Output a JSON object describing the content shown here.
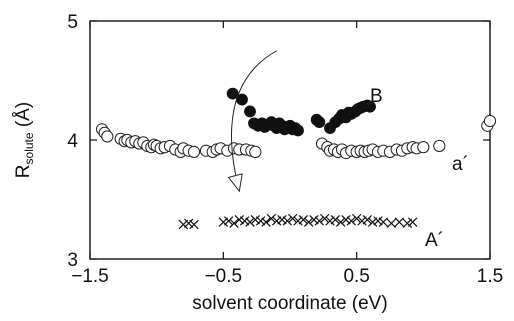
{
  "chart_data": {
    "type": "scatter",
    "title": "",
    "xlabel": "solvent coordinate (eV)",
    "ylabel_main": "R",
    "ylabel_sub": "solute",
    "ylabel_unit": " (Å)",
    "xlim": [
      -1.5,
      1.5
    ],
    "ylim": [
      3,
      5
    ],
    "xticks": [
      -1.5,
      -0.5,
      0.5,
      1.5
    ],
    "xtick_labels": [
      "−1.5",
      "−0.5",
      "0.5",
      "1.5"
    ],
    "yticks": [
      3,
      4,
      5
    ],
    "ytick_labels": [
      "3",
      "4",
      "5"
    ],
    "grid": false,
    "series": [
      {
        "marker": "open-circle",
        "annotation": "a´",
        "points": [
          [
            -1.41,
            4.09
          ],
          [
            -1.39,
            4.06
          ],
          [
            -1.37,
            4.03
          ],
          [
            -1.27,
            4.01
          ],
          [
            -1.24,
            3.99
          ],
          [
            -1.22,
            4.0
          ],
          [
            -1.19,
            3.98
          ],
          [
            -1.16,
            3.99
          ],
          [
            -1.13,
            3.97
          ],
          [
            -1.1,
            3.98
          ],
          [
            -1.07,
            3.95
          ],
          [
            -1.04,
            3.94
          ],
          [
            -1.02,
            3.96
          ],
          [
            -1.0,
            3.95
          ],
          [
            -0.97,
            3.93
          ],
          [
            -0.94,
            3.94
          ],
          [
            -0.9,
            3.95
          ],
          [
            -0.86,
            3.92
          ],
          [
            -0.82,
            3.9
          ],
          [
            -0.8,
            3.93
          ],
          [
            -0.76,
            3.91
          ],
          [
            -0.72,
            3.9
          ],
          [
            -0.63,
            3.91
          ],
          [
            -0.58,
            3.9
          ],
          [
            -0.55,
            3.92
          ],
          [
            -0.52,
            3.93
          ],
          [
            -0.47,
            3.91
          ],
          [
            -0.42,
            3.93
          ],
          [
            -0.38,
            3.92
          ],
          [
            -0.33,
            3.92
          ],
          [
            -0.29,
            3.91
          ],
          [
            -0.26,
            3.9
          ],
          [
            0.24,
            3.97
          ],
          [
            0.28,
            3.94
          ],
          [
            0.3,
            3.91
          ],
          [
            0.33,
            3.92
          ],
          [
            0.36,
            3.9
          ],
          [
            0.39,
            3.92
          ],
          [
            0.42,
            3.89
          ],
          [
            0.46,
            3.91
          ],
          [
            0.5,
            3.9
          ],
          [
            0.53,
            3.91
          ],
          [
            0.56,
            3.9
          ],
          [
            0.59,
            3.91
          ],
          [
            0.62,
            3.92
          ],
          [
            0.66,
            3.9
          ],
          [
            0.7,
            3.91
          ],
          [
            0.75,
            3.9
          ],
          [
            0.8,
            3.92
          ],
          [
            0.84,
            3.91
          ],
          [
            0.88,
            3.93
          ],
          [
            0.92,
            3.94
          ],
          [
            0.95,
            3.93
          ],
          [
            1.0,
            3.94
          ],
          [
            1.12,
            3.95
          ],
          [
            1.48,
            4.12
          ],
          [
            1.5,
            4.16
          ]
        ]
      },
      {
        "marker": "filled-circle",
        "annotation": "B",
        "points": [
          [
            -0.43,
            4.39
          ],
          [
            -0.36,
            4.34
          ],
          [
            -0.3,
            4.24
          ],
          [
            -0.27,
            4.14
          ],
          [
            -0.24,
            4.12
          ],
          [
            -0.21,
            4.14
          ],
          [
            -0.19,
            4.11
          ],
          [
            -0.16,
            4.13
          ],
          [
            -0.14,
            4.15
          ],
          [
            -0.12,
            4.12
          ],
          [
            -0.1,
            4.1
          ],
          [
            -0.08,
            4.14
          ],
          [
            -0.06,
            4.12
          ],
          [
            -0.04,
            4.09
          ],
          [
            -0.02,
            4.1
          ],
          [
            0.0,
            4.12
          ],
          [
            0.02,
            4.09
          ],
          [
            0.04,
            4.1
          ],
          [
            0.06,
            4.08
          ],
          [
            0.2,
            4.17
          ],
          [
            0.22,
            4.15
          ],
          [
            0.3,
            4.1
          ],
          [
            0.34,
            4.15
          ],
          [
            0.37,
            4.18
          ],
          [
            0.39,
            4.21
          ],
          [
            0.42,
            4.19
          ],
          [
            0.44,
            4.23
          ],
          [
            0.46,
            4.22
          ],
          [
            0.49,
            4.24
          ],
          [
            0.51,
            4.26
          ],
          [
            0.53,
            4.27
          ],
          [
            0.55,
            4.28
          ],
          [
            0.58,
            4.29
          ],
          [
            0.6,
            4.28
          ]
        ]
      },
      {
        "marker": "cross",
        "annotation": "A´",
        "points": [
          [
            -0.8,
            3.29
          ],
          [
            -0.76,
            3.3
          ],
          [
            -0.72,
            3.29
          ],
          [
            -0.5,
            3.31
          ],
          [
            -0.46,
            3.32
          ],
          [
            -0.42,
            3.3
          ],
          [
            -0.38,
            3.33
          ],
          [
            -0.34,
            3.32
          ],
          [
            -0.3,
            3.31
          ],
          [
            -0.26,
            3.33
          ],
          [
            -0.22,
            3.32
          ],
          [
            -0.18,
            3.31
          ],
          [
            -0.14,
            3.34
          ],
          [
            -0.1,
            3.32
          ],
          [
            -0.06,
            3.33
          ],
          [
            -0.02,
            3.32
          ],
          [
            0.02,
            3.34
          ],
          [
            0.06,
            3.32
          ],
          [
            0.1,
            3.33
          ],
          [
            0.14,
            3.31
          ],
          [
            0.18,
            3.33
          ],
          [
            0.22,
            3.32
          ],
          [
            0.26,
            3.34
          ],
          [
            0.3,
            3.32
          ],
          [
            0.34,
            3.33
          ],
          [
            0.38,
            3.31
          ],
          [
            0.42,
            3.33
          ],
          [
            0.46,
            3.32
          ],
          [
            0.5,
            3.34
          ],
          [
            0.54,
            3.32
          ],
          [
            0.58,
            3.33
          ],
          [
            0.62,
            3.31
          ],
          [
            0.66,
            3.32
          ],
          [
            0.7,
            3.31
          ],
          [
            0.76,
            3.3
          ],
          [
            0.82,
            3.31
          ],
          [
            0.88,
            3.3
          ],
          [
            0.92,
            3.31
          ]
        ]
      }
    ],
    "arrow": {
      "from": [
        -0.1,
        4.75
      ],
      "control": [
        -0.58,
        4.45
      ],
      "to": [
        -0.38,
        3.57
      ]
    }
  }
}
